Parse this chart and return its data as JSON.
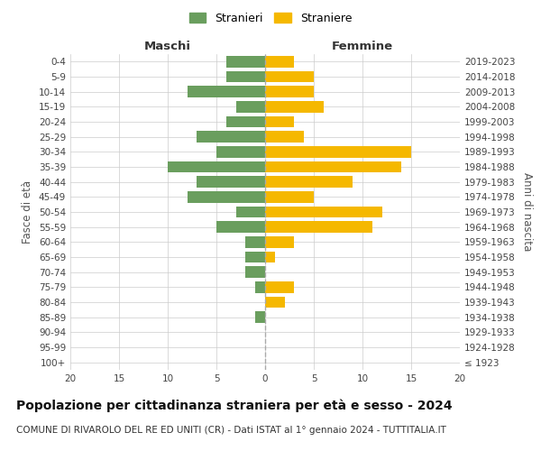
{
  "age_groups": [
    "100+",
    "95-99",
    "90-94",
    "85-89",
    "80-84",
    "75-79",
    "70-74",
    "65-69",
    "60-64",
    "55-59",
    "50-54",
    "45-49",
    "40-44",
    "35-39",
    "30-34",
    "25-29",
    "20-24",
    "15-19",
    "10-14",
    "5-9",
    "0-4"
  ],
  "birth_years": [
    "≤ 1923",
    "1924-1928",
    "1929-1933",
    "1934-1938",
    "1939-1943",
    "1944-1948",
    "1949-1953",
    "1954-1958",
    "1959-1963",
    "1964-1968",
    "1969-1973",
    "1974-1978",
    "1979-1983",
    "1984-1988",
    "1989-1993",
    "1994-1998",
    "1999-2003",
    "2004-2008",
    "2009-2013",
    "2014-2018",
    "2019-2023"
  ],
  "maschi": [
    0,
    0,
    0,
    1,
    0,
    1,
    2,
    2,
    2,
    5,
    3,
    8,
    7,
    10,
    5,
    7,
    4,
    3,
    8,
    4,
    4
  ],
  "femmine": [
    0,
    0,
    0,
    0,
    2,
    3,
    0,
    1,
    3,
    11,
    12,
    5,
    9,
    14,
    15,
    4,
    3,
    6,
    5,
    5,
    3
  ],
  "male_color": "#6a9e5e",
  "female_color": "#f5b800",
  "bar_height": 0.75,
  "xlim": 20,
  "title": "Popolazione per cittadinanza straniera per età e sesso - 2024",
  "subtitle": "COMUNE DI RIVAROLO DEL RE ED UNITI (CR) - Dati ISTAT al 1° gennaio 2024 - TUTTITALIA.IT",
  "xlabel_left": "Maschi",
  "xlabel_right": "Femmine",
  "ylabel_left": "Fasce di età",
  "ylabel_right": "Anni di nascita",
  "legend_male": "Stranieri",
  "legend_female": "Straniere",
  "background_color": "#ffffff",
  "grid_color": "#cccccc",
  "center_line_color": "#aaaaaa",
  "title_fontsize": 10,
  "subtitle_fontsize": 7.5,
  "tick_fontsize": 7.5,
  "label_fontsize": 8.5,
  "header_fontsize": 9.5
}
